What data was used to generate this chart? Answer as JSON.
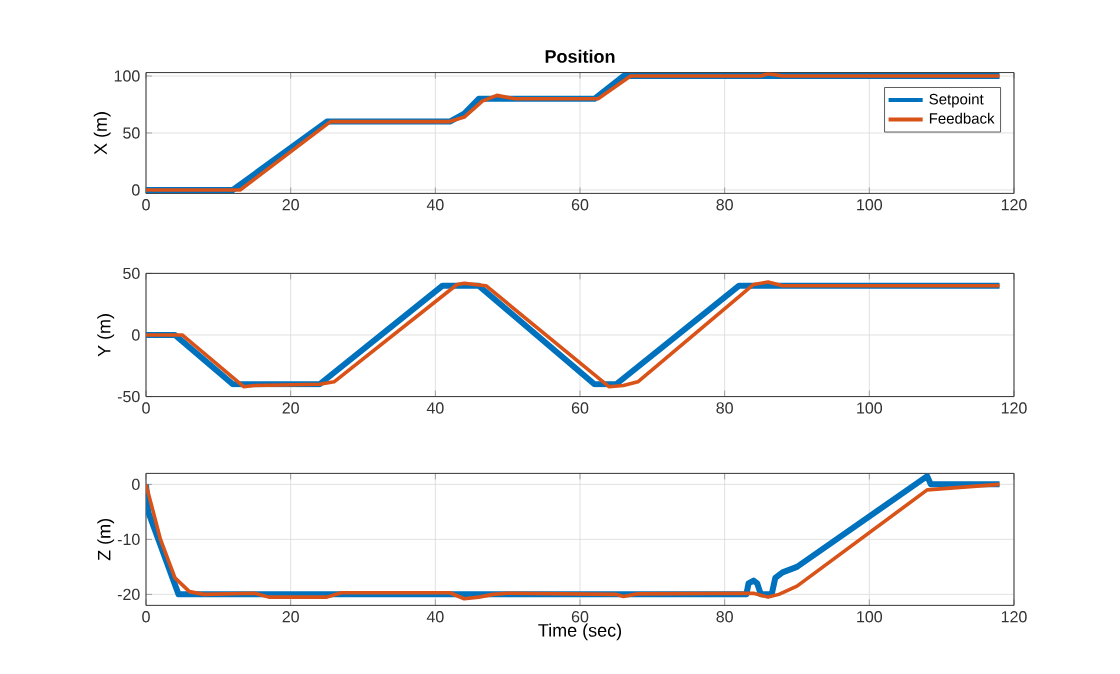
{
  "chart_data": [
    {
      "type": "line",
      "title": "Position",
      "ylabel": "X (m)",
      "xlim": [
        0,
        120
      ],
      "xticks": [
        0,
        20,
        40,
        60,
        80,
        100,
        120
      ],
      "ylim": [
        -3,
        103
      ],
      "yticks": [
        0,
        50,
        100
      ],
      "grid": true,
      "legend": "top right",
      "series": [
        {
          "name": "Setpoint",
          "color": "#0072bd",
          "x": [
            0,
            12,
            25,
            42,
            44,
            46,
            62,
            66,
            118
          ],
          "values": [
            0,
            0,
            60,
            60,
            67,
            80,
            80,
            100,
            100
          ]
        },
        {
          "name": "Feedback",
          "color": "#d95319",
          "x": [
            0,
            13,
            25.5,
            42,
            44,
            46.5,
            48.5,
            51,
            62.5,
            67,
            85,
            86,
            88,
            118
          ],
          "values": [
            0,
            0,
            60,
            60,
            64,
            78,
            83,
            80,
            80,
            100,
            100,
            102,
            100,
            100
          ]
        }
      ]
    },
    {
      "type": "line",
      "ylabel": "Y (m)",
      "xlim": [
        0,
        120
      ],
      "xticks": [
        0,
        20,
        40,
        60,
        80,
        100,
        120
      ],
      "ylim": [
        -50,
        50
      ],
      "yticks": [
        -50,
        0,
        50
      ],
      "grid": true,
      "series": [
        {
          "color": "#0072bd",
          "x": [
            0,
            4,
            12,
            24,
            41,
            46,
            62,
            65,
            82,
            118
          ],
          "values": [
            0,
            0,
            -40,
            -40,
            40,
            40,
            -40,
            -40,
            40,
            40
          ]
        },
        {
          "color": "#d95319",
          "x": [
            0,
            5,
            13.5,
            15,
            24,
            26,
            43,
            44,
            47,
            64,
            66,
            68,
            84,
            86,
            88,
            118
          ],
          "values": [
            0,
            0,
            -42,
            -41,
            -40,
            -38,
            41,
            42,
            40,
            -42,
            -41,
            -38,
            41,
            43,
            40,
            40
          ]
        }
      ]
    },
    {
      "type": "line",
      "xlabel": "Time (sec)",
      "ylabel": "Z (m)",
      "xlim": [
        0,
        120
      ],
      "xticks": [
        0,
        20,
        40,
        60,
        80,
        100,
        120
      ],
      "ylim": [
        -22,
        2
      ],
      "yticks": [
        -20,
        -10,
        0
      ],
      "grid": true,
      "series": [
        {
          "color": "#0072bd",
          "x": [
            0,
            0.3,
            4.5,
            83,
            83.3,
            84,
            84.5,
            85,
            86.5,
            87,
            88,
            90,
            108,
            108.5,
            118
          ],
          "values": [
            0,
            -5,
            -20,
            -20,
            -18,
            -17.5,
            -18,
            -20,
            -20,
            -17,
            -16,
            -15,
            1.5,
            0,
            0
          ]
        },
        {
          "color": "#d95319",
          "x": [
            0,
            2,
            4,
            6,
            8,
            15,
            17,
            25,
            27,
            42,
            44,
            46,
            48,
            50,
            65,
            66,
            68,
            84,
            86,
            87.5,
            90,
            108,
            118
          ],
          "values": [
            0,
            -10,
            -17,
            -19.5,
            -20,
            -19.8,
            -20.5,
            -20.5,
            -19.7,
            -19.7,
            -20.8,
            -20.5,
            -20,
            -19.8,
            -20,
            -20.4,
            -19.9,
            -19.8,
            -20.5,
            -20,
            -18.5,
            -1,
            0
          ]
        }
      ]
    }
  ]
}
